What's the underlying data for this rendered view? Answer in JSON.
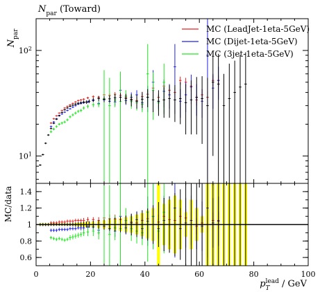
{
  "chart_data": {
    "type": "scatter",
    "title": "N_par (Toward)",
    "title_main": "N",
    "title_sub": "par",
    "title_rest": " (Toward)",
    "ylabel_main": "N",
    "ylabel_sub": "par",
    "ratio_ylabel": "MC/data",
    "xlabel_main": "p",
    "xlabel_sub": "T",
    "xlabel_sup": "lead",
    "xlabel_unit": " / GeV",
    "xlim": [
      0,
      100
    ],
    "ylim_main": [
      5.5,
      200
    ],
    "yscale_main": "log",
    "ylim_ratio": [
      0.5,
      1.5
    ],
    "legend_position": "top-right",
    "xticks": [
      "0",
      "20",
      "40",
      "60",
      "80",
      "100"
    ],
    "yticks_main": [
      {
        "base": "10",
        "exp": "1",
        "value": 10
      },
      {
        "base": "10",
        "exp": "2",
        "value": 100
      }
    ],
    "yticks_ratio": [
      "0.6",
      "0.8",
      "1",
      "1.2",
      "1.4"
    ],
    "data": {
      "x": [
        1.5,
        2.5,
        3.5,
        4.5,
        5.5,
        6.5,
        7.5,
        8.5,
        9.5,
        10.5,
        11.5,
        12.5,
        13.5,
        14.5,
        15.5,
        16.5,
        17.5,
        18.5,
        19.5,
        21,
        23,
        25,
        27,
        29,
        31,
        33,
        35,
        37,
        39,
        41,
        43,
        45,
        47,
        49,
        51,
        53,
        55,
        57,
        59,
        61,
        63,
        65,
        67,
        69,
        71,
        73,
        75,
        77
      ],
      "y": [
        8.2,
        10.3,
        13.2,
        15.8,
        18.2,
        20.4,
        22.3,
        24.2,
        25.9,
        27.4,
        28.5,
        29.6,
        30.3,
        31.0,
        31.6,
        32.0,
        32.4,
        32.4,
        33.0,
        34.0,
        35.0,
        34.5,
        34.8,
        35.6,
        36.0,
        35.0,
        34.0,
        33.0,
        34.5,
        36.0,
        34.0,
        33.0,
        34.0,
        35.0,
        34.0,
        35.0,
        32.0,
        34.0,
        36.0,
        35.0,
        30.0,
        50.0,
        48.0,
        30.0,
        35.0,
        40.0,
        45.0,
        48.0
      ],
      "err": [
        0.15,
        0.2,
        0.25,
        0.3,
        0.3,
        0.35,
        0.35,
        0.4,
        0.45,
        0.5,
        0.55,
        0.6,
        0.7,
        0.8,
        0.9,
        1.0,
        1.1,
        1.2,
        1.3,
        1.5,
        1.8,
        2.2,
        2.6,
        3.0,
        3.4,
        3.8,
        4.5,
        5.0,
        6.0,
        7.0,
        8.0,
        9.0,
        11.0,
        12.0,
        13.0,
        15.0,
        16.0,
        18.0,
        20.0,
        22.0,
        25.0,
        40.0,
        45.0,
        30.0,
        40.0,
        40.0,
        45.0,
        48.0
      ]
    },
    "series": [
      {
        "name": "MC (LeadJet-1eta-5GeV)",
        "color": "#e62020",
        "x": [
          5.5,
          6.5,
          7.5,
          8.5,
          9.5,
          10.5,
          11.5,
          12.5,
          13.5,
          14.5,
          15.5,
          16.5,
          17.5,
          19,
          21,
          23,
          25,
          27,
          29,
          31,
          33,
          35,
          37,
          39,
          41,
          43,
          45,
          47,
          49,
          51,
          53,
          55,
          57,
          59,
          61,
          63,
          65,
          67
        ],
        "y": [
          20.5,
          22.5,
          24.0,
          25.5,
          27.0,
          28.5,
          29.5,
          30.5,
          31.5,
          32.5,
          33.5,
          34.0,
          34.5,
          35.5,
          36.5,
          36.0,
          38.0,
          37.5,
          38.5,
          37.5,
          36.0,
          34.5,
          33.5,
          36.5,
          38.5,
          44.0,
          36.0,
          46.0,
          42.0,
          40.0,
          52.0,
          50.0,
          46.0,
          34.0,
          38.0,
          36.0,
          52.0,
          52.0
        ],
        "err": [
          0.4,
          0.4,
          0.4,
          0.4,
          0.4,
          0.45,
          0.5,
          0.5,
          0.55,
          0.6,
          0.65,
          0.7,
          0.75,
          0.9,
          1.0,
          1.2,
          1.4,
          1.6,
          1.8,
          2.0,
          2.2,
          2.4,
          2.6,
          3.0,
          3.2,
          3.5,
          3.0,
          4.0,
          4.0,
          4.0,
          4.5,
          5.0,
          5.0,
          4.0,
          5.0,
          5.0,
          6.0,
          6.0
        ],
        "ratio": [
          1.02,
          1.02,
          1.02,
          1.03,
          1.03,
          1.03,
          1.04,
          1.04,
          1.04,
          1.05,
          1.05,
          1.05,
          1.05,
          1.06,
          1.06,
          1.05,
          1.08,
          1.07,
          1.07,
          1.06,
          1.05,
          1.03,
          1.02,
          1.05,
          1.07,
          1.1,
          1.03,
          1.1,
          1.06,
          1.05,
          1.1,
          1.08,
          1.05,
          0.98,
          1.02,
          1.0,
          1.05,
          1.05
        ],
        "ratio_err": [
          0.02,
          0.02,
          0.02,
          0.02,
          0.02,
          0.02,
          0.02,
          0.02,
          0.02,
          0.02,
          0.02,
          0.02,
          0.03,
          0.03,
          0.03,
          0.04,
          0.04,
          0.05,
          0.05,
          0.06,
          0.06,
          0.07,
          0.07,
          0.08,
          0.08,
          0.09,
          0.09,
          0.1,
          0.1,
          0.1,
          0.1,
          0.1,
          0.1,
          0.1,
          0.1,
          0.1,
          0.1,
          0.1
        ]
      },
      {
        "name": "MC (Dijet-1eta-5GeV)",
        "color": "#2020e6",
        "x": [
          5.5,
          6.5,
          7.5,
          8.5,
          9.5,
          10.5,
          11.5,
          12.5,
          13.5,
          14.5,
          15.5,
          16.5,
          17.5,
          19,
          21,
          23,
          25,
          27,
          29,
          31,
          33,
          35,
          37,
          39,
          41,
          43,
          45,
          47,
          49,
          51,
          53,
          55,
          57,
          59,
          61,
          63,
          65,
          67
        ],
        "y": [
          19.0,
          21.0,
          22.5,
          24.0,
          25.0,
          26.0,
          27.0,
          28.0,
          29.0,
          30.0,
          31.0,
          31.5,
          32.0,
          32.5,
          33.5,
          31.5,
          34.0,
          33.0,
          32.5,
          42.0,
          33.5,
          36.0,
          38.0,
          32.0,
          36.0,
          50.0,
          33.0,
          41.0,
          38.0,
          70.0,
          33.0,
          38.0,
          45.0,
          36.0,
          33.0,
          90.0,
          44.0,
          52.0
        ],
        "err": [
          0.4,
          0.4,
          0.4,
          0.4,
          0.4,
          0.45,
          0.5,
          0.5,
          0.55,
          0.6,
          0.65,
          0.7,
          0.75,
          0.9,
          1.0,
          1.5,
          1.5,
          2.0,
          2.5,
          3.0,
          3.0,
          4.0,
          4.0,
          5.0,
          10.0,
          15.0,
          5.0,
          12.0,
          10.0,
          45.0,
          10.0,
          12.0,
          14.0,
          12.0,
          10.0,
          110.0,
          16.0,
          18.0
        ],
        "ratio": [
          0.93,
          0.93,
          0.93,
          0.94,
          0.94,
          0.94,
          0.94,
          0.95,
          0.95,
          0.95,
          0.96,
          0.96,
          0.96,
          0.97,
          0.97,
          0.93,
          0.98,
          0.95,
          0.92,
          1.1,
          0.96,
          1.02,
          1.06,
          0.95,
          1.04,
          1.1,
          0.95,
          1.05,
          1.0,
          1.2,
          0.95,
          1.02,
          1.05,
          1.0,
          0.98,
          1.2,
          1.02,
          1.04
        ],
        "ratio_err": [
          0.02,
          0.02,
          0.02,
          0.02,
          0.02,
          0.02,
          0.02,
          0.02,
          0.02,
          0.02,
          0.02,
          0.03,
          0.03,
          0.03,
          0.04,
          0.05,
          0.05,
          0.06,
          0.07,
          0.08,
          0.08,
          0.1,
          0.1,
          0.12,
          0.3,
          0.4,
          0.12,
          0.3,
          0.25,
          0.6,
          0.25,
          0.3,
          0.3,
          0.3,
          0.3,
          0.6,
          0.3,
          0.3
        ]
      },
      {
        "name": "MC (3jet-1eta-5GeV)",
        "color": "#20e620",
        "x": [
          5.5,
          6.5,
          7.5,
          8.5,
          9.5,
          10.5,
          11.5,
          12.5,
          13.5,
          14.5,
          15.5,
          16.5,
          17.5,
          19,
          21,
          23,
          25,
          27,
          29,
          31,
          33,
          35,
          37,
          39,
          41,
          43,
          45,
          47
        ],
        "y": [
          17.0,
          18.0,
          19.0,
          20.0,
          20.5,
          21.0,
          22.0,
          23.5,
          24.5,
          25.5,
          26.5,
          27.0,
          28.5,
          29.5,
          30.5,
          31.0,
          35.0,
          30.0,
          34.0,
          33.0,
          37.0,
          33.0,
          32.0,
          31.0,
          60.0,
          42.0,
          32.0,
          50.0
        ],
        "err": [
          0.5,
          0.5,
          0.5,
          0.55,
          0.6,
          0.6,
          0.65,
          0.7,
          0.75,
          0.8,
          0.85,
          0.9,
          1.0,
          1.2,
          1.5,
          2.0,
          30.0,
          25.0,
          5.0,
          30.0,
          5.0,
          5.0,
          5.0,
          5.0,
          55.0,
          20.0,
          5.0,
          25.0
        ],
        "ratio": [
          0.84,
          0.83,
          0.82,
          0.83,
          0.82,
          0.81,
          0.82,
          0.84,
          0.85,
          0.86,
          0.87,
          0.88,
          0.9,
          0.91,
          0.92,
          0.9,
          1.0,
          0.88,
          0.96,
          0.95,
          1.05,
          0.95,
          0.92,
          0.9,
          1.15,
          1.1,
          0.92,
          1.15
        ],
        "ratio_err": [
          0.02,
          0.02,
          0.02,
          0.02,
          0.02,
          0.02,
          0.02,
          0.03,
          0.03,
          0.03,
          0.03,
          0.03,
          0.04,
          0.05,
          0.06,
          0.08,
          0.6,
          0.6,
          0.15,
          0.6,
          0.15,
          0.15,
          0.15,
          0.15,
          0.6,
          0.4,
          0.15,
          0.5
        ]
      }
    ],
    "ratio_band": {
      "color": "#ffff00",
      "x": [
        1.5,
        2.5,
        3.5,
        4.5,
        5.5,
        6.5,
        7.5,
        8.5,
        9.5,
        10.5,
        11.5,
        12.5,
        13.5,
        14.5,
        15.5,
        16.5,
        17.5,
        18.5,
        19.5,
        21,
        23,
        25,
        27,
        29,
        31,
        33,
        35,
        37,
        39,
        41,
        43,
        45,
        47,
        49,
        51,
        53,
        55,
        57,
        59,
        61,
        63,
        65,
        67,
        69,
        71,
        73,
        75,
        77
      ],
      "rel_err": [
        0.01,
        0.01,
        0.01,
        0.01,
        0.01,
        0.01,
        0.01,
        0.01,
        0.01,
        0.01,
        0.01,
        0.01,
        0.01,
        0.015,
        0.02,
        0.02,
        0.025,
        0.03,
        0.03,
        0.035,
        0.04,
        0.05,
        0.06,
        0.07,
        0.08,
        0.09,
        0.1,
        0.12,
        0.14,
        0.17,
        0.2,
        0.6,
        0.25,
        0.3,
        0.35,
        0.3,
        0.15,
        0.3,
        0.2,
        0.1,
        0.6,
        0.6,
        0.6,
        0.6,
        0.6,
        0.6,
        0.6,
        0.6
      ]
    }
  }
}
